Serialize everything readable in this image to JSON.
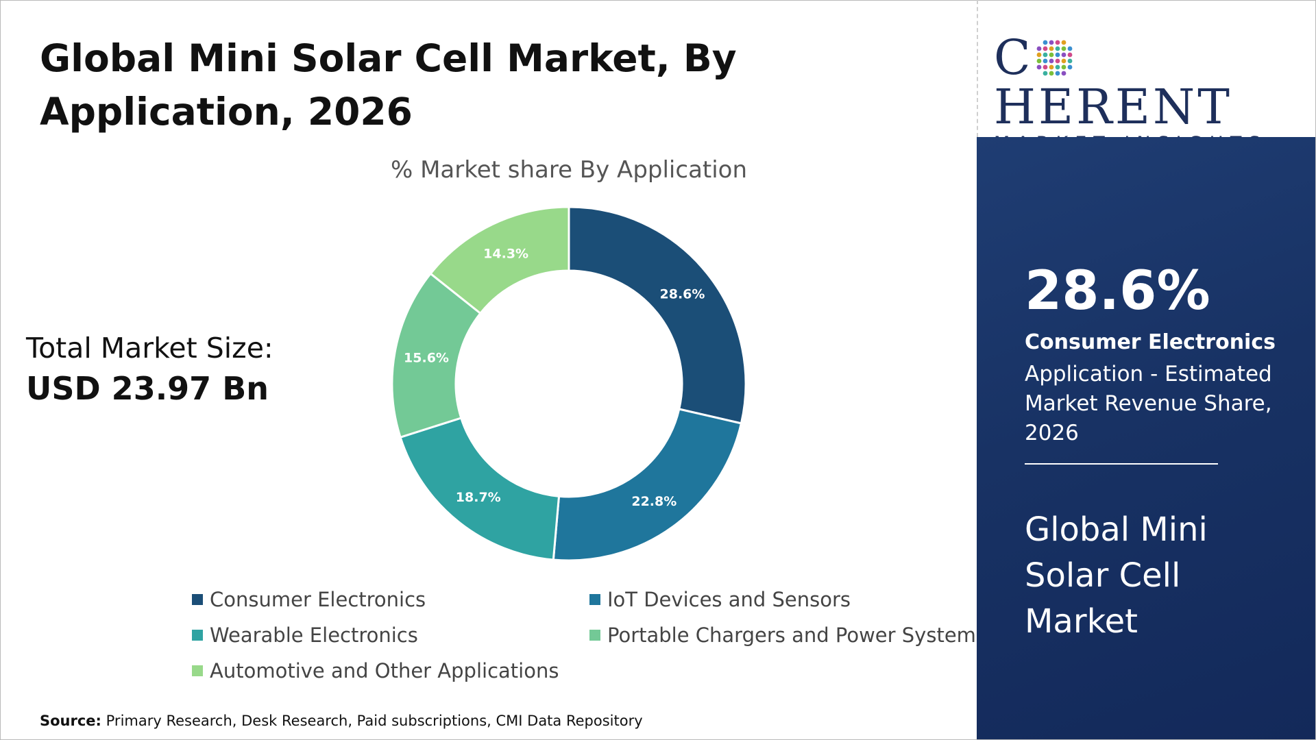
{
  "title": "Global Mini Solar Cell Market, By Application, 2026",
  "total_market": {
    "label": "Total Market Size:",
    "value": "USD 23.97 Bn"
  },
  "source": {
    "label": "Source:",
    "text": "Primary Research, Desk Research, Paid subscriptions, CMI Data Repository"
  },
  "logo": {
    "brand_prefix": "C",
    "brand_suffix": "HERENT",
    "subtitle": "MARKET INSIGHTS"
  },
  "highlight": {
    "value": "28.6%",
    "category": "Consumer Electronics",
    "description": "Application - Estimated Market Revenue Share, 2026",
    "market_name": "Global Mini Solar Cell Market"
  },
  "chart_data": {
    "type": "pie",
    "subtype": "donut",
    "title": "% Market share By Application",
    "categories": [
      "Consumer Electronics",
      "IoT Devices and Sensors",
      "Wearable Electronics",
      "Portable Chargers and Power Systems",
      "Automotive and Other Applications"
    ],
    "values": [
      28.6,
      22.8,
      18.7,
      15.6,
      14.3
    ],
    "labels": [
      "28.6%",
      "22.8%",
      "18.7%",
      "15.6%",
      "14.3%"
    ],
    "colors": [
      "#1b4e77",
      "#1f769c",
      "#2fa3a2",
      "#73c996",
      "#98d98a"
    ],
    "legend_position": "bottom"
  }
}
